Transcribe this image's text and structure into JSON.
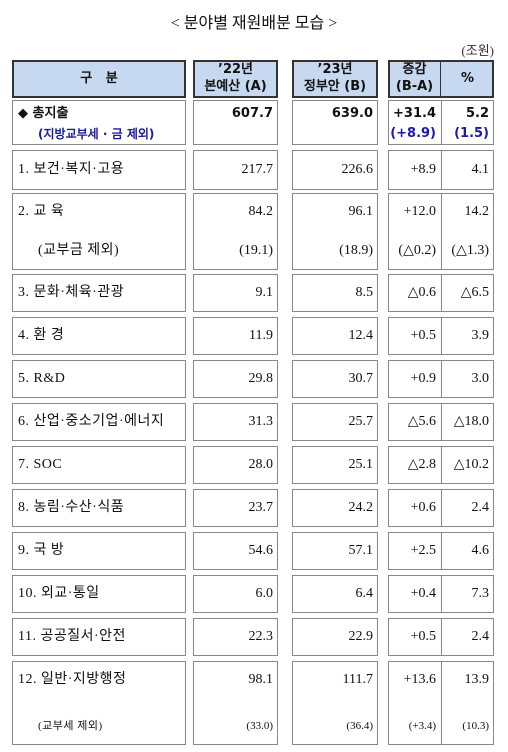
{
  "title": "< 분야별 재원배분 모습 >",
  "unit": "(조원)",
  "table": {
    "header": [
      [
        "구   분"
      ],
      [
        "’22년",
        "본예산 (A)"
      ],
      [
        "’23년",
        "정부안 (B)"
      ],
      [
        "증감",
        "(B-A)"
      ],
      [
        "%"
      ]
    ],
    "rows": [
      {
        "lines": [
          {
            "label": "◆ 총지출",
            "a": "607.7",
            "b": "639.0",
            "change": "+31.4",
            "pct": "5.2"
          },
          {
            "label": "(지방교부세 · 금 제외)",
            "change": "(+8.9)",
            "pct": "(1.5)"
          }
        ]
      },
      {
        "lines": [
          {
            "label": "1. 보건·복지·고용",
            "a": "217.7",
            "b": "226.6",
            "change": "+8.9",
            "pct": "4.1"
          }
        ]
      },
      {
        "lines": [
          {
            "label": "2. 교 육",
            "a": "84.2",
            "b": "96.1",
            "change": "+12.0",
            "pct": "14.2"
          },
          {
            "label": "(교부금 제외)",
            "a": "(19.1)",
            "b": "(18.9)",
            "change": "(△0.2)",
            "pct": "(△1.3)"
          }
        ]
      },
      {
        "lines": [
          {
            "label": "3. 문화·체육·관광",
            "a": "9.1",
            "b": "8.5",
            "change": "△0.6",
            "pct": "△6.5"
          }
        ]
      },
      {
        "lines": [
          {
            "label": "4. 환 경",
            "a": "11.9",
            "b": "12.4",
            "change": "+0.5",
            "pct": "3.9"
          }
        ]
      },
      {
        "lines": [
          {
            "label": "5. R&D",
            "a": "29.8",
            "b": "30.7",
            "change": "+0.9",
            "pct": "3.0"
          }
        ]
      },
      {
        "lines": [
          {
            "label": "6. 산업·중소기업·에너지",
            "a": "31.3",
            "b": "25.7",
            "change": "△5.6",
            "pct": "△18.0"
          }
        ]
      },
      {
        "lines": [
          {
            "label": "7. SOC",
            "a": "28.0",
            "b": "25.1",
            "change": "△2.8",
            "pct": "△10.2"
          }
        ]
      },
      {
        "lines": [
          {
            "label": "8. 농림·수산·식품",
            "a": "23.7",
            "b": "24.2",
            "change": "+0.6",
            "pct": "2.4"
          }
        ]
      },
      {
        "lines": [
          {
            "label": "9. 국 방",
            "a": "54.6",
            "b": "57.1",
            "change": "+2.5",
            "pct": "4.6"
          }
        ]
      },
      {
        "lines": [
          {
            "label": "10. 외교·통일",
            "a": "6.0",
            "b": "6.4",
            "change": "+0.4",
            "pct": "7.3"
          }
        ]
      },
      {
        "lines": [
          {
            "label": "11. 공공질서·안전",
            "a": "22.3",
            "b": "22.9",
            "change": "+0.5",
            "pct": "2.4"
          }
        ]
      },
      {
        "lines": [
          {
            "label": "12. 일반·지방행정",
            "a": "98.1",
            "b": "111.7",
            "change": "+13.6",
            "pct": "13.9"
          },
          {
            "label": "(교부세 제외)",
            "a": "(33.0)",
            "b": "(36.4)",
            "change": "(+3.4)",
            "pct": "(10.3)"
          }
        ]
      }
    ]
  }
}
